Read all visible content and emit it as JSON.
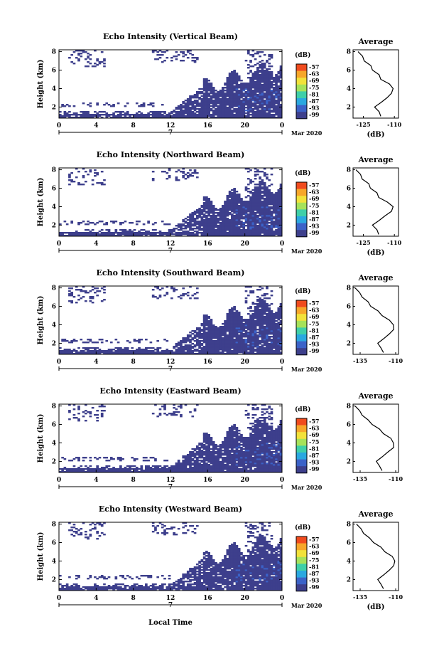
{
  "figure": {
    "xlabel": "Local Time"
  },
  "colorbar": {
    "unit": "(dB)",
    "ticks": [
      "-57",
      "-63",
      "-69",
      "-75",
      "-81",
      "-87",
      "-93",
      "-99"
    ],
    "colors": [
      "#f04b1e",
      "#f7a72a",
      "#f2e23a",
      "#a6e25a",
      "#3fcfa8",
      "#2aa8e0",
      "#3b62c8",
      "#3d3f8c"
    ]
  },
  "chart_data": [
    {
      "type": "heatmap",
      "title": "Echo Intensity (Vertical Beam)",
      "xlabel": "Local Time",
      "ylabel": "Height (km)",
      "x_ticks": [
        "0",
        "4",
        "8",
        "12",
        "16",
        "20",
        "0"
      ],
      "y_ticks": [
        "2",
        "4",
        "6",
        "8"
      ],
      "day_label": "7",
      "date_label": "Mar 2020",
      "xlim": [
        0,
        24
      ],
      "ylim": [
        0.8,
        8.2
      ],
      "profile": {
        "title": "Average",
        "xlabel": "(dB)",
        "x_ticks": [
          "-125",
          "-110"
        ],
        "xlim": [
          -130,
          -108
        ],
        "y_ticks": [
          "2",
          "4",
          "6",
          "8"
        ],
        "ylim": [
          0.8,
          8.2
        ],
        "heights": [
          1.0,
          1.5,
          2.0,
          2.5,
          3.0,
          3.5,
          4.0,
          4.5,
          5.0,
          5.5,
          6.0,
          6.5,
          7.0,
          7.5,
          8.0
        ],
        "values": [
          -116,
          -118,
          -119,
          -117,
          -113,
          -112,
          -110,
          -113,
          -116,
          -118,
          -120,
          -122,
          -124,
          -126,
          -127
        ]
      }
    },
    {
      "type": "heatmap",
      "title": "Echo Intensity (Northward Beam)",
      "xlabel": "Local Time",
      "ylabel": "Height (km)",
      "x_ticks": [
        "0",
        "4",
        "8",
        "12",
        "16",
        "20",
        "0"
      ],
      "y_ticks": [
        "2",
        "4",
        "6",
        "8"
      ],
      "day_label": "7",
      "date_label": "Mar 2020",
      "xlim": [
        0,
        24
      ],
      "ylim": [
        0.8,
        8.2
      ],
      "profile": {
        "title": "Average",
        "xlabel": "(dB)",
        "x_ticks": [
          "-125",
          "-110"
        ],
        "xlim": [
          -130,
          -108
        ],
        "y_ticks": [
          "2",
          "4",
          "6",
          "8"
        ],
        "ylim": [
          0.8,
          8.2
        ],
        "heights": [
          1.0,
          1.5,
          2.0,
          2.5,
          3.0,
          3.5,
          4.0,
          4.5,
          5.0,
          5.5,
          6.0,
          6.5,
          7.0,
          7.5,
          8.0
        ],
        "values": [
          -117,
          -119,
          -120,
          -118,
          -114,
          -112,
          -110,
          -114,
          -117,
          -119,
          -121,
          -123,
          -125,
          -127,
          -128
        ]
      }
    },
    {
      "type": "heatmap",
      "title": "Echo Intensity (Southward Beam)",
      "xlabel": "Local Time",
      "ylabel": "Height (km)",
      "x_ticks": [
        "0",
        "4",
        "8",
        "12",
        "16",
        "20",
        "0"
      ],
      "y_ticks": [
        "2",
        "4",
        "6",
        "8"
      ],
      "day_label": "7",
      "date_label": "Mar 2020",
      "xlim": [
        0,
        24
      ],
      "ylim": [
        0.8,
        8.2
      ],
      "profile": {
        "title": "Average",
        "xlabel": "",
        "x_ticks": [
          "-135",
          "-110"
        ],
        "xlim": [
          -140,
          -108
        ],
        "y_ticks": [
          "2",
          "4",
          "6",
          "8"
        ],
        "ylim": [
          0.8,
          8.2
        ],
        "heights": [
          1.0,
          1.5,
          2.0,
          2.5,
          3.0,
          3.5,
          4.0,
          4.5,
          5.0,
          5.5,
          6.0,
          6.5,
          7.0,
          7.5,
          8.0
        ],
        "values": [
          -118,
          -121,
          -122,
          -119,
          -114,
          -112,
          -111,
          -115,
          -119,
          -123,
          -127,
          -130,
          -133,
          -136,
          -138
        ]
      }
    },
    {
      "type": "heatmap",
      "title": "Echo Intensity (Eastward Beam)",
      "xlabel": "Local Time",
      "ylabel": "Height (km)",
      "x_ticks": [
        "0",
        "4",
        "8",
        "12",
        "16",
        "20",
        "0"
      ],
      "y_ticks": [
        "2",
        "4",
        "6",
        "8"
      ],
      "day_label": "7",
      "date_label": "Mar 2020",
      "xlim": [
        0,
        24
      ],
      "ylim": [
        0.8,
        8.2
      ],
      "profile": {
        "title": "Average",
        "xlabel": "",
        "x_ticks": [
          "-135",
          "-110"
        ],
        "xlim": [
          -140,
          -108
        ],
        "y_ticks": [
          "2",
          "4",
          "6",
          "8"
        ],
        "ylim": [
          0.8,
          8.2
        ],
        "heights": [
          1.0,
          1.5,
          2.0,
          2.5,
          3.0,
          3.5,
          4.0,
          4.5,
          5.0,
          5.5,
          6.0,
          6.5,
          7.0,
          7.5,
          8.0
        ],
        "values": [
          -119,
          -122,
          -123,
          -120,
          -115,
          -112,
          -111,
          -114,
          -118,
          -122,
          -126,
          -130,
          -133,
          -136,
          -138
        ]
      }
    },
    {
      "type": "heatmap",
      "title": "Echo Intensity (Westward Beam)",
      "xlabel": "Local Time",
      "ylabel": "Height (km)",
      "x_ticks": [
        "0",
        "4",
        "8",
        "12",
        "16",
        "20",
        "0"
      ],
      "y_ticks": [
        "2",
        "4",
        "6",
        "8"
      ],
      "day_label": "7",
      "date_label": "Mar 2020",
      "xlim": [
        0,
        24
      ],
      "ylim": [
        0.8,
        8.2
      ],
      "profile": {
        "title": "Average",
        "xlabel": "(dB)",
        "x_ticks": [
          "-135",
          "-110"
        ],
        "xlim": [
          -140,
          -108
        ],
        "y_ticks": [
          "2",
          "4",
          "6",
          "8"
        ],
        "ylim": [
          0.8,
          8.2
        ],
        "heights": [
          1.0,
          1.5,
          2.0,
          2.5,
          3.0,
          3.5,
          4.0,
          4.5,
          5.0,
          5.5,
          6.0,
          6.5,
          7.0,
          7.5,
          8.0
        ],
        "values": [
          -118,
          -121,
          -122,
          -119,
          -114,
          -112,
          -110,
          -113,
          -117,
          -121,
          -125,
          -129,
          -132,
          -135,
          -137
        ]
      }
    }
  ]
}
